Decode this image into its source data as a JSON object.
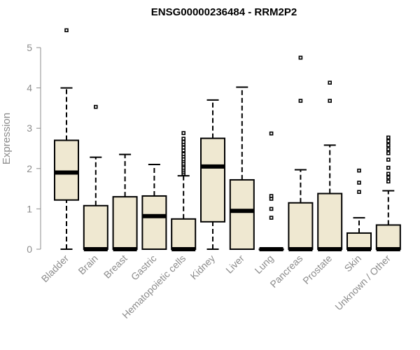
{
  "chart_data": {
    "type": "boxplot",
    "title": "ENSG00000236484 - RRM2P2",
    "xlabel": "",
    "ylabel": "Expression",
    "ylim": [
      0,
      5.5
    ],
    "yticks": [
      0,
      1,
      2,
      3,
      4,
      5
    ],
    "grid": false,
    "box_fill": "#efe8d1",
    "box_stroke": "#000000",
    "axis_color": "#8c8c8c",
    "categories": [
      "Bladder",
      "Brain",
      "Breast",
      "Gastric",
      "Hematopoietic cells",
      "Kidney",
      "Liver",
      "Lung",
      "Pancreas",
      "Prostate",
      "Skin",
      "Unknown / Other"
    ],
    "boxes": [
      {
        "name": "Bladder",
        "whisker_low": 0,
        "q1": 1.22,
        "median": 1.9,
        "q3": 2.7,
        "whisker_high": 4.0,
        "outliers": [
          5.43
        ]
      },
      {
        "name": "Brain",
        "whisker_low": 0,
        "q1": 0,
        "median": 0,
        "q3": 1.08,
        "whisker_high": 2.28,
        "outliers": [
          3.53
        ]
      },
      {
        "name": "Breast",
        "whisker_low": 0,
        "q1": 0,
        "median": 0,
        "q3": 1.3,
        "whisker_high": 2.35,
        "outliers": []
      },
      {
        "name": "Gastric",
        "whisker_low": 0,
        "q1": 0,
        "median": 0.82,
        "q3": 1.32,
        "whisker_high": 2.1,
        "outliers": []
      },
      {
        "name": "Hematopoietic cells",
        "whisker_low": 0,
        "q1": 0,
        "median": 0,
        "q3": 0.75,
        "whisker_high": 1.82,
        "outliers": [
          1.87,
          1.92,
          1.97,
          2.02,
          2.08,
          2.12,
          2.18,
          2.23,
          2.3,
          2.36,
          2.45,
          2.52,
          2.6,
          2.66,
          2.74,
          2.88
        ]
      },
      {
        "name": "Kidney",
        "whisker_low": 0,
        "q1": 0.68,
        "median": 2.05,
        "q3": 2.75,
        "whisker_high": 3.7,
        "outliers": []
      },
      {
        "name": "Liver",
        "whisker_low": 0,
        "q1": 0,
        "median": 0.95,
        "q3": 1.72,
        "whisker_high": 4.02,
        "outliers": []
      },
      {
        "name": "Lung",
        "whisker_low": 0,
        "q1": 0,
        "median": 0,
        "q3": 0,
        "whisker_high": 0,
        "outliers": [
          0.78,
          1.0,
          1.25,
          1.32,
          2.87
        ]
      },
      {
        "name": "Pancreas",
        "whisker_low": 0,
        "q1": 0,
        "median": 0,
        "q3": 1.15,
        "whisker_high": 1.97,
        "outliers": [
          3.68,
          4.75
        ]
      },
      {
        "name": "Prostate",
        "whisker_low": 0,
        "q1": 0,
        "median": 0,
        "q3": 1.38,
        "whisker_high": 2.58,
        "outliers": [
          3.68,
          4.13
        ]
      },
      {
        "name": "Skin",
        "whisker_low": 0,
        "q1": 0,
        "median": 0,
        "q3": 0.4,
        "whisker_high": 0.78,
        "outliers": [
          1.42,
          1.65,
          1.95
        ]
      },
      {
        "name": "Unknown / Other",
        "whisker_low": 0,
        "q1": 0,
        "median": 0,
        "q3": 0.6,
        "whisker_high": 1.45,
        "outliers": [
          1.68,
          1.78,
          1.87,
          2.02,
          2.22,
          2.38,
          2.48,
          2.58,
          2.68,
          2.77
        ]
      }
    ]
  }
}
